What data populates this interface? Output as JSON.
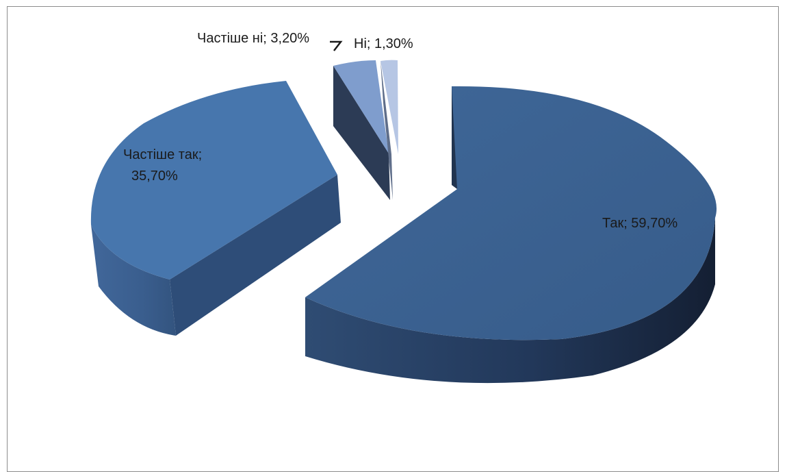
{
  "chart_data": {
    "type": "pie",
    "style": "3d-exploded",
    "title": "",
    "slices": [
      {
        "label": "Так",
        "value": 59.7,
        "text": "Так; 59,70%",
        "color": "#3c6393"
      },
      {
        "label": "Частіше так",
        "value": 35.7,
        "text": "Частіше так;",
        "text2": "35,70%",
        "color": "#4775ad"
      },
      {
        "label": "Частіше ні",
        "value": 3.2,
        "text": "Частіше ні; 3,20%",
        "color": "#7f9ccd"
      },
      {
        "label": "Ні",
        "value": 1.3,
        "text": "Ні; 1,30%",
        "color": "#b6c6e4"
      }
    ],
    "legend": "none",
    "data_labels": "category; value"
  }
}
